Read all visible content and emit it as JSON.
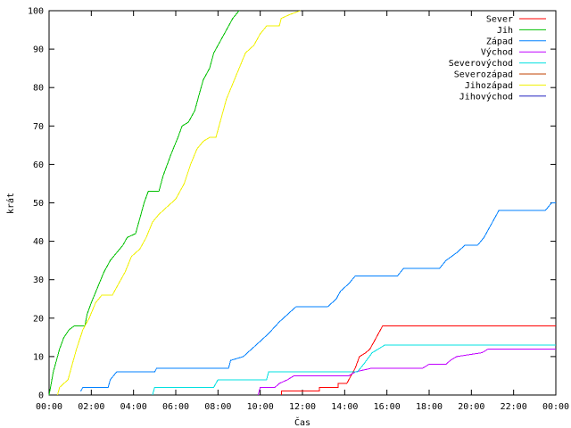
{
  "chart_data": {
    "type": "line",
    "xlabel": "Čas",
    "ylabel": "krát",
    "xlim": [
      0,
      24
    ],
    "ylim": [
      0,
      100
    ],
    "x_ticks": [
      0,
      2,
      4,
      6,
      8,
      10,
      12,
      14,
      16,
      18,
      20,
      22,
      24
    ],
    "x_tick_labels": [
      "00:00",
      "02:00",
      "04:00",
      "06:00",
      "08:00",
      "10:00",
      "12:00",
      "14:00",
      "16:00",
      "18:00",
      "20:00",
      "22:00",
      "00:00"
    ],
    "y_ticks": [
      0,
      10,
      20,
      30,
      40,
      50,
      60,
      70,
      80,
      90,
      100
    ],
    "legend_position": "top-right",
    "grid": false,
    "series": [
      {
        "name": "Sever",
        "color": "#ff0000",
        "points": [
          [
            11.0,
            0
          ],
          [
            11.0,
            1
          ],
          [
            12.8,
            1
          ],
          [
            12.8,
            2
          ],
          [
            13.7,
            2
          ],
          [
            13.7,
            3
          ],
          [
            14.1,
            3
          ],
          [
            14.3,
            5
          ],
          [
            14.5,
            7
          ],
          [
            14.7,
            10
          ],
          [
            15.0,
            11
          ],
          [
            15.2,
            12
          ],
          [
            15.4,
            14
          ],
          [
            15.6,
            16
          ],
          [
            15.8,
            18
          ],
          [
            24.0,
            18
          ]
        ]
      },
      {
        "name": "Jih",
        "color": "#00c000",
        "points": [
          [
            0.0,
            0
          ],
          [
            0.1,
            3
          ],
          [
            0.2,
            6
          ],
          [
            0.35,
            9
          ],
          [
            0.5,
            12
          ],
          [
            0.7,
            15
          ],
          [
            0.95,
            17
          ],
          [
            1.2,
            18
          ],
          [
            1.7,
            18
          ],
          [
            1.8,
            21
          ],
          [
            2.0,
            24
          ],
          [
            2.3,
            28
          ],
          [
            2.6,
            32
          ],
          [
            2.9,
            35
          ],
          [
            3.2,
            37
          ],
          [
            3.5,
            39
          ],
          [
            3.7,
            41
          ],
          [
            4.1,
            42
          ],
          [
            4.3,
            46
          ],
          [
            4.5,
            50
          ],
          [
            4.7,
            53
          ],
          [
            5.2,
            53
          ],
          [
            5.4,
            57
          ],
          [
            5.6,
            60
          ],
          [
            5.8,
            63
          ],
          [
            6.1,
            67
          ],
          [
            6.3,
            70
          ],
          [
            6.6,
            71
          ],
          [
            6.9,
            74
          ],
          [
            7.1,
            78
          ],
          [
            7.3,
            82
          ],
          [
            7.6,
            85
          ],
          [
            7.8,
            89
          ],
          [
            8.1,
            92
          ],
          [
            8.4,
            95
          ],
          [
            8.7,
            98
          ],
          [
            9.0,
            100
          ]
        ]
      },
      {
        "name": "Západ",
        "color": "#0080ff",
        "points": [
          [
            1.5,
            1
          ],
          [
            1.6,
            2
          ],
          [
            2.8,
            2
          ],
          [
            2.9,
            4
          ],
          [
            3.2,
            6
          ],
          [
            5.0,
            6
          ],
          [
            5.1,
            7
          ],
          [
            8.5,
            7
          ],
          [
            8.6,
            9
          ],
          [
            9.2,
            10
          ],
          [
            9.6,
            12
          ],
          [
            10.0,
            14
          ],
          [
            10.4,
            16
          ],
          [
            10.9,
            19
          ],
          [
            11.3,
            21
          ],
          [
            11.7,
            23
          ],
          [
            13.2,
            23
          ],
          [
            13.6,
            25
          ],
          [
            13.8,
            27
          ],
          [
            14.2,
            29
          ],
          [
            14.5,
            31
          ],
          [
            16.5,
            31
          ],
          [
            16.8,
            33
          ],
          [
            18.5,
            33
          ],
          [
            18.8,
            35
          ],
          [
            19.3,
            37
          ],
          [
            19.7,
            39
          ],
          [
            20.3,
            39
          ],
          [
            20.6,
            41
          ],
          [
            20.9,
            44
          ],
          [
            21.1,
            46
          ],
          [
            21.3,
            48
          ],
          [
            23.5,
            48
          ],
          [
            23.8,
            50
          ],
          [
            24.0,
            50
          ]
        ]
      },
      {
        "name": "Východ",
        "color": "#c000ff",
        "points": [
          [
            9.9,
            0
          ],
          [
            10.0,
            2
          ],
          [
            10.7,
            2
          ],
          [
            10.9,
            3
          ],
          [
            11.3,
            4
          ],
          [
            11.6,
            5
          ],
          [
            14.2,
            5
          ],
          [
            14.5,
            6
          ],
          [
            15.3,
            7
          ],
          [
            17.7,
            7
          ],
          [
            18.0,
            8
          ],
          [
            18.8,
            8
          ],
          [
            19.0,
            9
          ],
          [
            19.3,
            10
          ],
          [
            20.5,
            11
          ],
          [
            20.8,
            12
          ],
          [
            24.0,
            12
          ]
        ]
      },
      {
        "name": "Severovýchod",
        "color": "#00e0e0",
        "points": [
          [
            4.9,
            0
          ],
          [
            5.0,
            2
          ],
          [
            7.8,
            2
          ],
          [
            8.0,
            4
          ],
          [
            10.3,
            4
          ],
          [
            10.4,
            6
          ],
          [
            14.6,
            6
          ],
          [
            14.9,
            8
          ],
          [
            15.3,
            11
          ],
          [
            15.9,
            13
          ],
          [
            24.0,
            13
          ]
        ]
      },
      {
        "name": "Severozápad",
        "color": "#c04000",
        "points": []
      },
      {
        "name": "Jihozápad",
        "color": "#f0f000",
        "points": [
          [
            0.4,
            0
          ],
          [
            0.5,
            2
          ],
          [
            0.9,
            4
          ],
          [
            1.1,
            8
          ],
          [
            1.3,
            12
          ],
          [
            1.6,
            17
          ],
          [
            1.9,
            20
          ],
          [
            2.2,
            24
          ],
          [
            2.5,
            26
          ],
          [
            3.0,
            26
          ],
          [
            3.2,
            28
          ],
          [
            3.6,
            32
          ],
          [
            3.9,
            36
          ],
          [
            4.3,
            38
          ],
          [
            4.6,
            41
          ],
          [
            4.9,
            45
          ],
          [
            5.2,
            47
          ],
          [
            5.6,
            49
          ],
          [
            6.0,
            51
          ],
          [
            6.4,
            55
          ],
          [
            6.7,
            60
          ],
          [
            7.0,
            64
          ],
          [
            7.3,
            66
          ],
          [
            7.6,
            67
          ],
          [
            7.9,
            67
          ],
          [
            8.1,
            71
          ],
          [
            8.4,
            77
          ],
          [
            8.7,
            81
          ],
          [
            9.0,
            85
          ],
          [
            9.3,
            89
          ],
          [
            9.7,
            91
          ],
          [
            10.0,
            94
          ],
          [
            10.3,
            96
          ],
          [
            10.9,
            96
          ],
          [
            11.0,
            98
          ],
          [
            11.4,
            99
          ],
          [
            11.9,
            100
          ]
        ]
      },
      {
        "name": "Jihovýchod",
        "color": "#2020c0",
        "points": []
      }
    ]
  }
}
